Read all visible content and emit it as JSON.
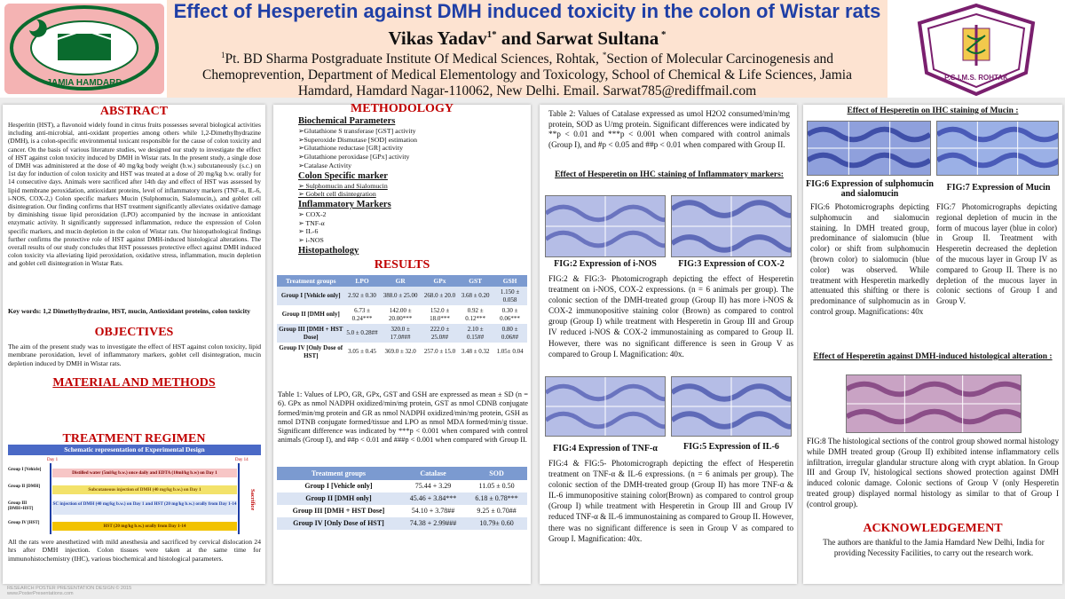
{
  "header": {
    "title": "Effect of Hesperetin against DMH induced toxicity in the colon of Wistar rats",
    "authors_a": "Vikas Yadav",
    "authors_sup1": "1*",
    "authors_b": " and Sarwat Sultana",
    "authors_sup2": " *",
    "affil_sup1": "1",
    "affil_line1": "Pt. BD Sharma Postgraduate Institute Of Medical Sciences, Rohtak, ",
    "affil_sup2": "*",
    "affil_line1b": "Section of Molecular Carcinogenesis and",
    "affil_line2": "Chemoprevention, Department of Medical Elementology and Toxicology, School of Chemical & Life Sciences, Jamia",
    "affil_line3": "Hamdard, Hamdard Nagar-110062, New Delhi. Email. Sarwat785@rediffmail.com",
    "logo_left_text": "JAMIA HAMDARD",
    "logo_right_text": "P.G.I.M.S. ROHTAK"
  },
  "abstract": {
    "heading": "ABSTRACT",
    "body": "Hesperitin (HST), a flavonoid widely found in citrus fruits possesses several biological activities including anti-microbial, anti-oxidant properties among others while 1,2-Dimethylhydrazine (DMH), is a colon-specific environmental toxicant responsible for the cause of colon toxicity and cancer. On the basis of various literature studies, we designed our study to investigate the effect of HST against colon toxicity induced by DMH in Wistar rats. In the present study, a single dose of DMH was administered at the dose of 40 mg/kg body weight (b.w.) subcutaneously (s.c.) on 1st day for induction of colon toxicity and HST was treated at a dose of 20 mg/kg b.w. orally for 14 consecutive days. Animals were sacrificed after 14th day and effect of HST was assessed by lipid membrane peroxidation, antioxidant proteins, level of inflammatory markers (TNF-α, IL-6, i-NOS, COX-2,) Colon specific markers Mucin (Sulphomucin, Sialomucin,), and goblet cell disintegration. Our finding confirms that HST treatment significantly alleviates oxidative damage by diminishing tissue lipid peroxidation (LPO) accompanied by the increase in antioxidant enzymatic activity. It significantly suppressed inflammation, reduce the expression of Colon specific markers, and mucin depletion in the colon of Wistar rats. Our histopathological findings further confirms the protective role of HST against DMH-induced histological alterations. The overall results of our study concludes that HST possesses protective effect against DMH induced colon toxicity via alleviating lipid peroxidation, oxidative stress, inflammation, mucin depletion and goblet cell disintegration in Wistar Rats.",
    "keywords": "Key words: 1,2 Dimethylhydrazine, HST, mucin, Antioxidant proteins, colon toxicity"
  },
  "objectives": {
    "heading": "OBJECTIVES",
    "body": "The aim of the present study was to investigate the effect of HST against colon toxicity, lipid membrane peroxidation, level of inflammatory markers, goblet cell disintegration, mucin depletion induced by DMH in Wistar rats."
  },
  "materials": {
    "heading": "MATERIAL AND METHODS"
  },
  "regimen": {
    "heading": "TREATMENT REGIMEN",
    "banner": "Schematic representation of Experimental Design",
    "day1": "Day 1",
    "day14": "Day 14",
    "sacrifice": "Sacrifice",
    "groups": [
      {
        "label": "Group I [Vehicle]",
        "bar": "Distilled water (5ml/kg b.w.) once daily and EDTA (10ml/kg b.w) on Day 1"
      },
      {
        "label": "Group II [DMH]",
        "bar": "Subcutaneous injection of DMH (40 mg/kg b.w.) on Day 1"
      },
      {
        "label": "Group III [DMH+HST]",
        "bar": "SC injection of DMH (40 mg/kg b.w.) on Day 1 and HST (20 mg/kg b.w.) orally from Day 1-14"
      },
      {
        "label": "Group IV [HST]",
        "bar": "HST (20 mg/kg b.w.) orally from Day 1-14"
      }
    ],
    "note": "All the rats were anesthetized with mild anesthesia and sacrificed by cervical dislocation 24 hrs after DMH injection. Colon tissues were taken at the same time for immunohistochemistry (IHC), various biochemical and histological parameters."
  },
  "methodology": {
    "heading": "METHODOLOGY",
    "biochem_heading": "Biochemical Parameters",
    "biochem": [
      "➢Glutathione S transferase [GST] activity",
      "➢Superoxide Dismutase [SOD] estimation",
      "➢Glutathione reductase [GR] activity",
      "➢Glutathione peroxidase [GPx] activity",
      "➢Catalase Activity"
    ],
    "colon_heading": "Colon Specific marker",
    "colon": [
      "➢   Sulphomucin and Sialomucin",
      "➢   Gobelt cell disintegration"
    ],
    "inflam_heading": "Inflammatory Markers",
    "inflam": [
      "➢ COX-2",
      "➢  TNF-α",
      "➢  IL-6",
      "➢  i-NOS"
    ],
    "histo_heading": "Histopathology"
  },
  "results": {
    "heading": "RESULTS",
    "table1": {
      "headers": [
        "Treatment groups",
        "LPO",
        "GR",
        "GPx",
        "GST",
        "GSH"
      ],
      "rows": [
        [
          "Group I [Vehicle only]",
          "2.92 ± 0.30",
          "388.0 ± 25.00",
          "268.0 ± 20.0",
          "3.68 ± 0.20",
          "1.150 ± 0.058"
        ],
        [
          "Group II [DMH only]",
          "6.73 ± 0.24***",
          "142.00 ± 20.00***",
          "152.0 ± 18.0***",
          "0.92 ± 0.12***",
          "0.30 ± 0.06***"
        ],
        [
          "Group III [DMH + HST Dose]",
          "5.0 ± 0.28##",
          "320.0 ± 17.0###",
          "222.0 ± 25.0##",
          "2.10 ± 0.15##",
          "0.80 ± 0.06##"
        ],
        [
          "Group IV [Only Dose of HST]",
          "3.05 ± 0.45",
          "369.0 ± 32.0",
          "257.0 ± 15.0",
          "3.48 ± 0.32",
          "1.05± 0.04"
        ]
      ],
      "caption": "Table 1: Values of LPO, GR, GPx, GST and GSH are expressed as mean ± SD (n = 6). GPx as nmol NADPH oxidized/min/mg protein, GST as nmol CDNB conjugate formed/min/mg protein and GR as nmol NADPH oxidized/min/mg protein, GSH as nmol DTNB conjugate formed/tissue and LPO as nmol MDA formed/min/g tissue. Significant difference was indicated by ***p < 0.001 when compared with control animals (Group I), and ##p < 0.01 and ###p < 0.001 when compared with Group II."
    },
    "table2": {
      "headers": [
        "Treatment groups",
        "Catalase",
        "SOD"
      ],
      "rows": [
        [
          "Group I [Vehicle only]",
          "75.44 + 3.29",
          "11.05 ± 0.50"
        ],
        [
          "Group II [DMH only]",
          "45.46 + 3.84***",
          "6.18 ± 0.78***"
        ],
        [
          "Group III [DMH + HST Dose]",
          "54.10 + 3.78##",
          "9.25 ± 0.70##"
        ],
        [
          "Group IV [Only Dose of HST]",
          "74.38 + 2.99###",
          "10.79± 0.60"
        ]
      ]
    }
  },
  "col3": {
    "table2_caption": "Table 2: Values of Catalase expressed as umol H2O2 consumed/min/mg protein, SOD as U/mg protein. Significant differences were indicated by **p < 0.01 and ***p < 0.001 when compared with control animals (Group I), and #p < 0.05 and ##p < 0.01 when compared with Group II.",
    "ihc_inflam_heading": "Effect of Hesperetin on IHC staining of Inflammatory markers:",
    "fig2": "FIG:2 Expression of i-NOS",
    "fig3": "FIG:3  Expression of COX-2",
    "fig23_caption": "FIG:2 & FIG:3- Photomicrograph depicting the effect of Hesperetin treatment on i-NOS, COX-2 expressions. (n = 6 animals per group). The colonic section of the DMH-treated group (Group II) has more i-NOS & COX-2 immunopositive staining color (Brown) as compared to control group (Group I) while treatment with Hesperetin in Group III and Group IV reduced i-NOS & COX-2 immunostaining as compared to Group II. However, there was no significant difference is seen in Group V as compared to Group I. Magnification: 40x.",
    "fig4": "FIG:4  Expression of TNF-α",
    "fig5": "FIG:5  Expression of IL-6",
    "fig45_caption": "FIG:4 & FIG:5- Photomicrograph depicting the effect of Hesperetin treatment on TNF-α & IL-6 expressions. (n = 6 animals per group). The colonic section of the DMH-treated group (Group II) has more TNF-α & IL-6 immunopositive staining color(Brown) as compared to control group (Group I) while treatment with Hesperetin in Group III and Group IV reduced TNF-α & IL-6 immunostaining as compared to Group II. However, there was no significant difference is seen in Group V as compared to Group I. Magnification: 40x."
  },
  "col4": {
    "mucin_heading": "Effect of Hesperetin on IHC staining of  Mucin :",
    "fig6": "FIG:6 Expression of sulphomucin and sialomucin",
    "fig7": "FIG:7 Expression of Mucin",
    "fig6_caption": "FIG:6 Photomicrographs depicting sulphomucin and sialomucin staining. In DMH treated group, predominance of sialomucin (blue color) or shift from sulphomucin (brown color) to sialomucin (blue color) was observed. While treatment with Hesperetin markedly attenuated this shifting or there is predominance of sulphomucin as in control group. Magnifications: 40x",
    "fig7_caption": "FIG:7 Photomicrographs depicting regional depletion of mucin in the form of mucous layer (blue in color) in Group II. Treatment with Hesperetin decreased the depletion of the mucous layer in Group IV as compared to Group II. There is no depletion of the mucous layer in colonic sections of Group I and Group V.",
    "histo_heading": "Effect of Hesperetin against DMH-induced histological alteration :",
    "fig8_caption": "FIG:8 The histological sections of the control group showed normal histology while DMH treated group (Group II) exhibited intense inflammatory cells infiltration, irregular glandular structure along with crypt ablation. In Group III and Group IV, histological sections showed protection against DMH induced colonic damage. Colonic sections of Group V (only Hesperetin treated group) displayed normal histology as similar to that of Group I (control group).",
    "ack_heading": "ACKNOWLEDGEMENT",
    "ack_body": "The authors are thankful to the Jamia Hamdard New Delhi, India for providing Necessity Facilities, to carry out the research work."
  },
  "footer": {
    "line1": "RESEARCH POSTER PRESENTATION DESIGN © 2015",
    "line2": "www.PosterPresentations.com"
  },
  "colors": {
    "title_blue": "#1f3fa6",
    "heading_red": "#c00000",
    "table_header": "#7b9ad0"
  }
}
